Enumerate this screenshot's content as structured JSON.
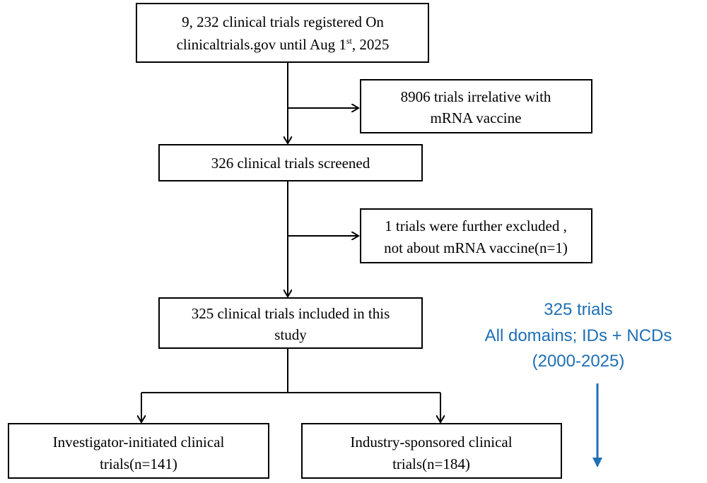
{
  "nodes": [
    {
      "lines": [
        "9, 232 clinical trials registered On",
        "clinicaltrials.gov until Aug 1",
        "st",
        ", 2025"
      ]
    },
    {
      "lines": [
        "8906 trials irrelative with",
        "mRNA vaccine"
      ]
    },
    {
      "lines": [
        "326 clinical trials screened"
      ]
    },
    {
      "lines": [
        "1 trials were further excluded ,",
        "not about mRNA vaccine(n=1)"
      ]
    },
    {
      "lines": [
        "325 clinical trials included in this",
        "study"
      ]
    },
    {
      "lines": [
        "Investigator-initiated clinical",
        "trials(n=141)"
      ]
    },
    {
      "lines": [
        "Industry-sponsored clinical",
        "trials(n=184)"
      ]
    }
  ],
  "annotation": {
    "lines": [
      "325 trials",
      "All domains; IDs + NCDs",
      "(2000-2025)"
    ]
  }
}
